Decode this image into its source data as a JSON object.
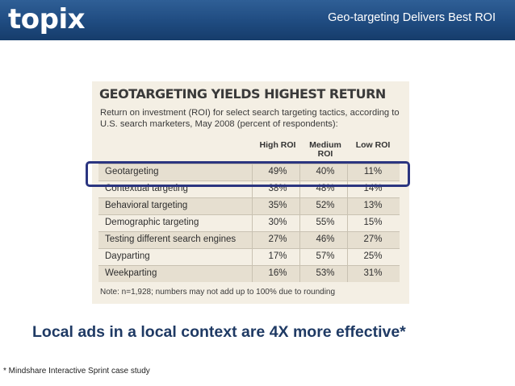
{
  "header": {
    "logo": "topix",
    "title": "Geo-targeting Delivers Best ROI"
  },
  "table": {
    "title": "GEOTARGETING YIELDS HIGHEST RETURN",
    "subtitle": "Return on investment (ROI) for select search targeting tactics, according to U.S. search marketers, May 2008 (percent of respondents):",
    "columns": [
      "High ROI",
      "Medium ROI",
      "Low ROI"
    ],
    "rows": [
      {
        "label": "Geotargeting",
        "values": [
          "49%",
          "40%",
          "11%"
        ]
      },
      {
        "label": "Contextual targeting",
        "values": [
          "38%",
          "48%",
          "14%"
        ]
      },
      {
        "label": "Behavioral targeting",
        "values": [
          "35%",
          "52%",
          "13%"
        ]
      },
      {
        "label": "Demographic targeting",
        "values": [
          "30%",
          "55%",
          "15%"
        ]
      },
      {
        "label": "Testing different search engines",
        "values": [
          "27%",
          "46%",
          "27%"
        ]
      },
      {
        "label": "Dayparting",
        "values": [
          "17%",
          "57%",
          "25%"
        ]
      },
      {
        "label": "Weekparting",
        "values": [
          "16%",
          "53%",
          "31%"
        ]
      }
    ],
    "note": "Note: n=1,928; numbers may not add up to 100% due to rounding",
    "highlighted_row": "Geotargeting"
  },
  "headline": "Local ads in a local context are 4X more effective*",
  "footnote": "* Mindshare Interactive Sprint case study",
  "colors": {
    "header_bg": "#1f4b80",
    "headline": "#1f3a64",
    "highlight_frame": "#2b3580",
    "table_bg": "#f4efe4",
    "table_alt_row": "#e6dfd0"
  }
}
